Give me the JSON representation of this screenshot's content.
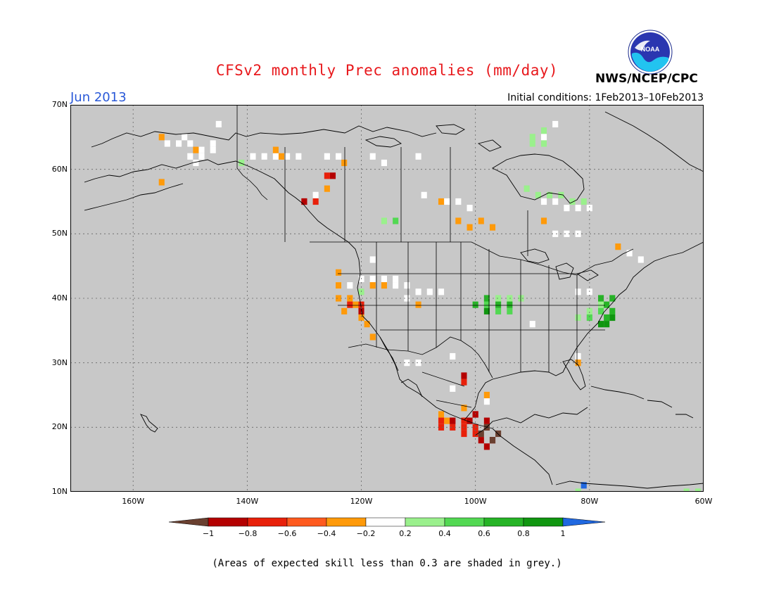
{
  "title": "CFSv2 monthly Prec anomalies (mm/day)",
  "month_label": "Jun 2013",
  "init_conditions": "Initial conditions: 1Feb2013–10Feb2013",
  "agency": "NWS/NCEP/CPC",
  "logo_text": "NOAA",
  "note": "(Areas of expected skill less than 0.3 are shaded in grey.)",
  "map": {
    "lat_labels": [
      "70N",
      "60N",
      "50N",
      "40N",
      "30N",
      "20N",
      "10N"
    ],
    "lat_values": [
      70,
      60,
      50,
      40,
      30,
      20,
      10
    ],
    "lon_labels": [
      "160W",
      "140W",
      "120W",
      "100W",
      "80W",
      "60W"
    ],
    "lon_values": [
      -160,
      -140,
      -120,
      -100,
      -80,
      -60
    ],
    "lon_range": [
      -171,
      -60
    ],
    "lat_range": [
      10,
      70
    ],
    "background_color": "#c8c8c8",
    "grid": true
  },
  "legend": {
    "ticks": [
      "−1",
      "−0.8",
      "−0.6",
      "−0.4",
      "−0.2",
      "0.2",
      "0.4",
      "0.6",
      "0.8",
      "1"
    ],
    "colors": [
      "#6a4030",
      "#b40000",
      "#e8200a",
      "#ff5a1e",
      "#ff9a0a",
      "#ffffff",
      "#9af08c",
      "#52d852",
      "#26b426",
      "#109610",
      "#2068e0"
    ]
  },
  "anomaly_cells": [
    {
      "lon": -152,
      "lat": 64,
      "cls": 3
    },
    {
      "lon": -150,
      "lat": 64,
      "cls": 3
    },
    {
      "lon": -148,
      "lat": 63,
      "cls": 3
    },
    {
      "lon": -146,
      "lat": 63,
      "cls": 3
    },
    {
      "lon": -150,
      "lat": 62,
      "cls": 3
    },
    {
      "lon": -148,
      "lat": 62,
      "cls": 3
    },
    {
      "lon": -154,
      "lat": 64,
      "cls": 3
    },
    {
      "lon": -146,
      "lat": 64,
      "cls": 3
    },
    {
      "lon": -151,
      "lat": 65,
      "cls": 3
    },
    {
      "lon": -149,
      "lat": 61,
      "cls": 3
    },
    {
      "lon": -135,
      "lat": 62,
      "cls": 3
    },
    {
      "lon": -133,
      "lat": 62,
      "cls": 3
    },
    {
      "lon": -137,
      "lat": 62,
      "cls": 3
    },
    {
      "lon": -131,
      "lat": 62,
      "cls": 3
    },
    {
      "lon": -139,
      "lat": 62,
      "cls": 3
    },
    {
      "lon": -126,
      "lat": 62,
      "cls": 3
    },
    {
      "lon": -124,
      "lat": 62,
      "cls": 3
    },
    {
      "lon": -145,
      "lat": 67,
      "cls": 3
    },
    {
      "lon": -128,
      "lat": 56,
      "cls": 3
    },
    {
      "lon": -110,
      "lat": 62,
      "cls": 3
    },
    {
      "lon": -118,
      "lat": 62,
      "cls": 3
    },
    {
      "lon": -116,
      "lat": 61,
      "cls": 3
    },
    {
      "lon": -109,
      "lat": 56,
      "cls": 3
    },
    {
      "lon": -105,
      "lat": 55,
      "cls": 3
    },
    {
      "lon": -103,
      "lat": 55,
      "cls": 3
    },
    {
      "lon": -101,
      "lat": 54,
      "cls": 3
    },
    {
      "lon": -88,
      "lat": 55,
      "cls": 3
    },
    {
      "lon": -86,
      "lat": 55,
      "cls": 3
    },
    {
      "lon": -84,
      "lat": 54,
      "cls": 3
    },
    {
      "lon": -82,
      "lat": 54,
      "cls": 3
    },
    {
      "lon": -80,
      "lat": 54,
      "cls": 3
    },
    {
      "lon": -86,
      "lat": 50,
      "cls": 3
    },
    {
      "lon": -84,
      "lat": 50,
      "cls": 3
    },
    {
      "lon": -82,
      "lat": 50,
      "cls": 3
    },
    {
      "lon": -88,
      "lat": 65,
      "cls": 3
    },
    {
      "lon": -86,
      "lat": 67,
      "cls": 3
    },
    {
      "lon": -73,
      "lat": 47,
      "cls": 3
    },
    {
      "lon": -71,
      "lat": 46,
      "cls": 3
    },
    {
      "lon": -120,
      "lat": 43,
      "cls": 3
    },
    {
      "lon": -118,
      "lat": 43,
      "cls": 3
    },
    {
      "lon": -116,
      "lat": 43,
      "cls": 3
    },
    {
      "lon": -114,
      "lat": 43,
      "cls": 3
    },
    {
      "lon": -112,
      "lat": 42,
      "cls": 3
    },
    {
      "lon": -110,
      "lat": 41,
      "cls": 3
    },
    {
      "lon": -108,
      "lat": 41,
      "cls": 3
    },
    {
      "lon": -106,
      "lat": 41,
      "cls": 3
    },
    {
      "lon": -114,
      "lat": 42,
      "cls": 3
    },
    {
      "lon": -112,
      "lat": 40,
      "cls": 3
    },
    {
      "lon": -122,
      "lat": 42,
      "cls": 3
    },
    {
      "lon": -124,
      "lat": 42,
      "cls": 3
    },
    {
      "lon": -118,
      "lat": 46,
      "cls": 3
    },
    {
      "lon": -110,
      "lat": 30,
      "cls": 3
    },
    {
      "lon": -112,
      "lat": 30,
      "cls": 3
    },
    {
      "lon": -104,
      "lat": 31,
      "cls": 3
    },
    {
      "lon": -104,
      "lat": 26,
      "cls": 3
    },
    {
      "lon": -98,
      "lat": 24,
      "cls": 3
    },
    {
      "lon": -82,
      "lat": 31,
      "cls": 3
    },
    {
      "lon": -90,
      "lat": 36,
      "cls": 3
    },
    {
      "lon": -80,
      "lat": 41,
      "cls": 3
    },
    {
      "lon": -82,
      "lat": 41,
      "cls": 3
    },
    {
      "lon": -155,
      "lat": 65,
      "cls": 2
    },
    {
      "lon": -149,
      "lat": 63,
      "cls": 2
    },
    {
      "lon": -135,
      "lat": 63,
      "cls": 2
    },
    {
      "lon": -134,
      "lat": 62,
      "cls": 2
    },
    {
      "lon": -155,
      "lat": 58,
      "cls": 2
    },
    {
      "lon": -123,
      "lat": 61,
      "cls": 2
    },
    {
      "lon": -126,
      "lat": 57,
      "cls": 2
    },
    {
      "lon": -106,
      "lat": 55,
      "cls": 2
    },
    {
      "lon": -103,
      "lat": 52,
      "cls": 2
    },
    {
      "lon": -99,
      "lat": 52,
      "cls": 2
    },
    {
      "lon": -101,
      "lat": 51,
      "cls": 2
    },
    {
      "lon": -97,
      "lat": 51,
      "cls": 2
    },
    {
      "lon": -88,
      "lat": 52,
      "cls": 2
    },
    {
      "lon": -75,
      "lat": 48,
      "cls": 2
    },
    {
      "lon": -124,
      "lat": 44,
      "cls": 2
    },
    {
      "lon": -124,
      "lat": 42,
      "cls": 2
    },
    {
      "lon": -122,
      "lat": 40,
      "cls": 2
    },
    {
      "lon": -124,
      "lat": 40,
      "cls": 2
    },
    {
      "lon": -121,
      "lat": 39,
      "cls": 2
    },
    {
      "lon": -123,
      "lat": 38,
      "cls": 2
    },
    {
      "lon": -120,
      "lat": 37,
      "cls": 2
    },
    {
      "lon": -119,
      "lat": 36,
      "cls": 2
    },
    {
      "lon": -118,
      "lat": 34,
      "cls": 2
    },
    {
      "lon": -118,
      "lat": 42,
      "cls": 2
    },
    {
      "lon": -116,
      "lat": 42,
      "cls": 2
    },
    {
      "lon": -110,
      "lat": 39,
      "cls": 2
    },
    {
      "lon": -82,
      "lat": 30,
      "cls": 2
    },
    {
      "lon": -98,
      "lat": 25,
      "cls": 2
    },
    {
      "lon": -102,
      "lat": 23,
      "cls": 2
    },
    {
      "lon": -106,
      "lat": 22,
      "cls": 2
    },
    {
      "lon": -105,
      "lat": 21,
      "cls": 2
    },
    {
      "lon": -130,
      "lat": 55,
      "cls": 1
    },
    {
      "lon": -128,
      "lat": 55,
      "cls": 1
    },
    {
      "lon": -126,
      "lat": 59,
      "cls": 1
    },
    {
      "lon": -106,
      "lat": 21,
      "cls": 1
    },
    {
      "lon": -104,
      "lat": 21,
      "cls": 1
    },
    {
      "lon": -102,
      "lat": 21,
      "cls": 1
    },
    {
      "lon": -104,
      "lat": 20,
      "cls": 1
    },
    {
      "lon": -102,
      "lat": 20,
      "cls": 1
    },
    {
      "lon": -100,
      "lat": 20,
      "cls": 1
    },
    {
      "lon": -102,
      "lat": 19,
      "cls": 1
    },
    {
      "lon": -100,
      "lat": 19,
      "cls": 1
    },
    {
      "lon": -98,
      "lat": 20,
      "cls": 1
    },
    {
      "lon": -100,
      "lat": 22,
      "cls": 1
    },
    {
      "lon": -106,
      "lat": 20,
      "cls": 1
    },
    {
      "lon": -122,
      "lat": 39,
      "cls": 1
    },
    {
      "lon": -120,
      "lat": 39,
      "cls": 1
    },
    {
      "lon": -102,
      "lat": 27,
      "cls": 1
    },
    {
      "lon": -125,
      "lat": 59,
      "cls": 0
    },
    {
      "lon": -120,
      "lat": 38,
      "cls": 0
    },
    {
      "lon": -102,
      "lat": 28,
      "cls": 0
    },
    {
      "lon": -104,
      "lat": 21,
      "cls": 0
    },
    {
      "lon": -101,
      "lat": 21,
      "cls": 0
    },
    {
      "lon": -99,
      "lat": 18,
      "cls": 0
    },
    {
      "lon": -97,
      "lat": 18,
      "cls": 0
    },
    {
      "lon": -98,
      "lat": 17,
      "cls": 0
    },
    {
      "lon": -100,
      "lat": 22,
      "cls": 0
    },
    {
      "lon": -98,
      "lat": 21,
      "cls": 0
    },
    {
      "lon": -130,
      "lat": 55,
      "cls": 0
    },
    {
      "lon": -98,
      "lat": 20,
      "cls": -1
    },
    {
      "lon": -96,
      "lat": 19,
      "cls": -1
    },
    {
      "lon": -97,
      "lat": 18,
      "cls": -1
    },
    {
      "lon": -99,
      "lat": 19,
      "cls": -1
    },
    {
      "lon": -90,
      "lat": 64,
      "cls": 6
    },
    {
      "lon": -88,
      "lat": 64,
      "cls": 6
    },
    {
      "lon": -90,
      "lat": 65,
      "cls": 6
    },
    {
      "lon": -88,
      "lat": 66,
      "cls": 6
    },
    {
      "lon": -91,
      "lat": 57,
      "cls": 6
    },
    {
      "lon": -89,
      "lat": 56,
      "cls": 6
    },
    {
      "lon": -87,
      "lat": 56,
      "cls": 6
    },
    {
      "lon": -85,
      "lat": 56,
      "cls": 6
    },
    {
      "lon": -83,
      "lat": 55,
      "cls": 6
    },
    {
      "lon": -81,
      "lat": 55,
      "cls": 6
    },
    {
      "lon": -141,
      "lat": 61,
      "cls": 6
    },
    {
      "lon": -116,
      "lat": 52,
      "cls": 6
    },
    {
      "lon": -96,
      "lat": 40,
      "cls": 6
    },
    {
      "lon": -94,
      "lat": 40,
      "cls": 6
    },
    {
      "lon": -92,
      "lat": 40,
      "cls": 6
    },
    {
      "lon": -78,
      "lat": 39,
      "cls": 6
    },
    {
      "lon": -80,
      "lat": 38,
      "cls": 6
    },
    {
      "lon": -82,
      "lat": 37,
      "cls": 6
    },
    {
      "lon": -120,
      "lat": 41,
      "cls": 6
    },
    {
      "lon": -114,
      "lat": 52,
      "cls": 7
    },
    {
      "lon": -98,
      "lat": 39,
      "cls": 7
    },
    {
      "lon": -96,
      "lat": 38,
      "cls": 7
    },
    {
      "lon": -94,
      "lat": 38,
      "cls": 7
    },
    {
      "lon": -80,
      "lat": 37,
      "cls": 7
    },
    {
      "lon": -78,
      "lat": 38,
      "cls": 7
    },
    {
      "lon": -100,
      "lat": 39,
      "cls": 8
    },
    {
      "lon": -98,
      "lat": 40,
      "cls": 8
    },
    {
      "lon": -96,
      "lat": 39,
      "cls": 8
    },
    {
      "lon": -94,
      "lat": 39,
      "cls": 8
    },
    {
      "lon": -78,
      "lat": 40,
      "cls": 8
    },
    {
      "lon": -77,
      "lat": 39,
      "cls": 8
    },
    {
      "lon": -76,
      "lat": 38,
      "cls": 8
    },
    {
      "lon": -77,
      "lat": 37,
      "cls": 8
    },
    {
      "lon": -76,
      "lat": 40,
      "cls": 8
    },
    {
      "lon": -98,
      "lat": 38,
      "cls": 9
    },
    {
      "lon": -77,
      "lat": 36,
      "cls": 9
    },
    {
      "lon": -76,
      "lat": 37,
      "cls": 9
    },
    {
      "lon": -78,
      "lat": 36,
      "cls": 9
    },
    {
      "lon": -82,
      "lat": 10,
      "cls": 6
    },
    {
      "lon": -61,
      "lat": 10,
      "cls": 6
    },
    {
      "lon": -63,
      "lat": 10,
      "cls": 6
    },
    {
      "lon": -81,
      "lat": 11,
      "cls": 10
    }
  ]
}
